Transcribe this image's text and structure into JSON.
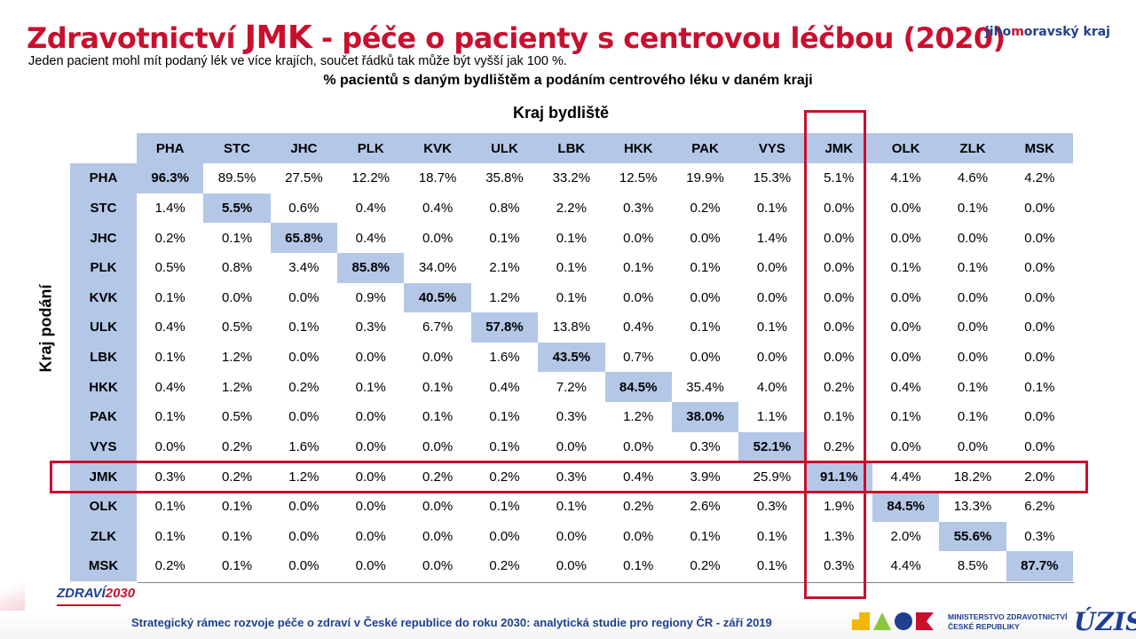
{
  "title_part1": "Zdravotnictví",
  "title_part2": "JMK",
  "title_part3": "- péče o pacienty s centrovou léčbou (2020)",
  "subtitle": "Jeden pacient mohl mít podaný lék ve více krajích, součet řádků tak může být vyšší jak 100 %.",
  "heading": "% pacientů s daným bydlištěm a podáním centrového léku v daném kraji",
  "col_axis_label": "Kraj bydliště",
  "row_axis_label": "Kraj podání",
  "logo_jihomoravsky": {
    "part1": "jiho",
    "part2": "m",
    "part3": "oravský kraj"
  },
  "colors": {
    "accent": "#c8102e",
    "header_bg": "#b4c7e7",
    "brand_blue": "#1f3f8f"
  },
  "table": {
    "columns": [
      "PHA",
      "STC",
      "JHC",
      "PLK",
      "KVK",
      "ULK",
      "LBK",
      "HKK",
      "PAK",
      "VYS",
      "JMK",
      "OLK",
      "ZLK",
      "MSK"
    ],
    "rows": [
      {
        "label": "PHA",
        "values": [
          "96.3%",
          "89.5%",
          "27.5%",
          "12.2%",
          "18.7%",
          "35.8%",
          "33.2%",
          "12.5%",
          "19.9%",
          "15.3%",
          "5.1%",
          "4.1%",
          "4.6%",
          "4.2%"
        ]
      },
      {
        "label": "STC",
        "values": [
          "1.4%",
          "5.5%",
          "0.6%",
          "0.4%",
          "0.4%",
          "0.8%",
          "2.2%",
          "0.3%",
          "0.2%",
          "0.1%",
          "0.0%",
          "0.0%",
          "0.1%",
          "0.0%"
        ]
      },
      {
        "label": "JHC",
        "values": [
          "0.2%",
          "0.1%",
          "65.8%",
          "0.4%",
          "0.0%",
          "0.1%",
          "0.1%",
          "0.0%",
          "0.0%",
          "1.4%",
          "0.0%",
          "0.0%",
          "0.0%",
          "0.0%"
        ]
      },
      {
        "label": "PLK",
        "values": [
          "0.5%",
          "0.8%",
          "3.4%",
          "85.8%",
          "34.0%",
          "2.1%",
          "0.1%",
          "0.1%",
          "0.1%",
          "0.0%",
          "0.0%",
          "0.1%",
          "0.1%",
          "0.0%"
        ]
      },
      {
        "label": "KVK",
        "values": [
          "0.1%",
          "0.0%",
          "0.0%",
          "0.9%",
          "40.5%",
          "1.2%",
          "0.1%",
          "0.0%",
          "0.0%",
          "0.0%",
          "0.0%",
          "0.0%",
          "0.0%",
          "0.0%"
        ]
      },
      {
        "label": "ULK",
        "values": [
          "0.4%",
          "0.5%",
          "0.1%",
          "0.3%",
          "6.7%",
          "57.8%",
          "13.8%",
          "0.4%",
          "0.1%",
          "0.1%",
          "0.0%",
          "0.0%",
          "0.0%",
          "0.0%"
        ]
      },
      {
        "label": "LBK",
        "values": [
          "0.1%",
          "1.2%",
          "0.0%",
          "0.0%",
          "0.0%",
          "1.6%",
          "43.5%",
          "0.7%",
          "0.0%",
          "0.0%",
          "0.0%",
          "0.0%",
          "0.0%",
          "0.0%"
        ]
      },
      {
        "label": "HKK",
        "values": [
          "0.4%",
          "1.2%",
          "0.2%",
          "0.1%",
          "0.1%",
          "0.4%",
          "7.2%",
          "84.5%",
          "35.4%",
          "4.0%",
          "0.2%",
          "0.4%",
          "0.1%",
          "0.1%"
        ]
      },
      {
        "label": "PAK",
        "values": [
          "0.1%",
          "0.5%",
          "0.0%",
          "0.0%",
          "0.1%",
          "0.1%",
          "0.3%",
          "1.2%",
          "38.0%",
          "1.1%",
          "0.1%",
          "0.1%",
          "0.1%",
          "0.0%"
        ]
      },
      {
        "label": "VYS",
        "values": [
          "0.0%",
          "0.2%",
          "1.6%",
          "0.0%",
          "0.0%",
          "0.1%",
          "0.0%",
          "0.0%",
          "0.3%",
          "52.1%",
          "0.2%",
          "0.0%",
          "0.0%",
          "0.0%"
        ]
      },
      {
        "label": "JMK",
        "values": [
          "0.3%",
          "0.2%",
          "1.2%",
          "0.0%",
          "0.2%",
          "0.2%",
          "0.3%",
          "0.4%",
          "3.9%",
          "25.9%",
          "91.1%",
          "4.4%",
          "18.2%",
          "2.0%"
        ]
      },
      {
        "label": "OLK",
        "values": [
          "0.1%",
          "0.1%",
          "0.0%",
          "0.0%",
          "0.0%",
          "0.1%",
          "0.1%",
          "0.2%",
          "2.6%",
          "0.3%",
          "1.9%",
          "84.5%",
          "13.3%",
          "6.2%"
        ]
      },
      {
        "label": "ZLK",
        "values": [
          "0.1%",
          "0.1%",
          "0.0%",
          "0.0%",
          "0.0%",
          "0.0%",
          "0.0%",
          "0.0%",
          "0.1%",
          "0.1%",
          "1.3%",
          "2.0%",
          "55.6%",
          "0.3%"
        ]
      },
      {
        "label": "MSK",
        "values": [
          "0.2%",
          "0.1%",
          "0.0%",
          "0.0%",
          "0.0%",
          "0.2%",
          "0.0%",
          "0.1%",
          "0.2%",
          "0.1%",
          "0.3%",
          "4.4%",
          "8.5%",
          "87.7%"
        ]
      }
    ]
  },
  "footer": {
    "text": "Strategický rámec rozvoje péče o zdraví v České republice do roku 2030: analytická studie pro regiony ČR - září 2019",
    "logo_zdravi_part1": "ZDRAVÍ",
    "logo_zdravi_part2": "2030",
    "ministry_line1": "MINISTERSTVO ZDRAVOTNICTVÍ",
    "ministry_line2": "ČESKÉ REPUBLIKY",
    "uzis": "ÚZIS"
  }
}
